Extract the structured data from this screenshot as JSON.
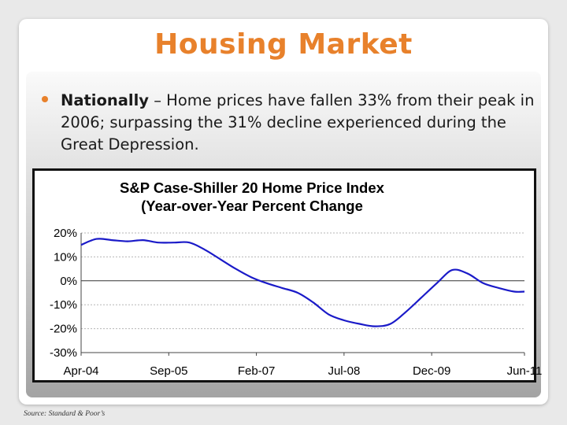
{
  "slide": {
    "title": "Housing Market",
    "bullet": {
      "lead": "Nationally",
      "text": " – Home prices have fallen 33% from their peak in 2006; surpassing the 31% decline experienced during the Great Depression."
    },
    "source": "Source:  Standard & Poor’s"
  },
  "colors": {
    "title": "#e8812b",
    "bullet": "#e8812b",
    "line": "#1a1ac8"
  },
  "chart_data": {
    "type": "line",
    "title": [
      "S&P Case-Shiller 20 Home Price Index",
      "(Year-over-Year Percent Change"
    ],
    "xlabel": "",
    "ylabel": "",
    "ylim": [
      -30,
      20
    ],
    "yticks": [
      {
        "value": 20,
        "label": "20%"
      },
      {
        "value": 10,
        "label": "10%"
      },
      {
        "value": 0,
        "label": "0%"
      },
      {
        "value": -10,
        "label": "-10%"
      },
      {
        "value": -20,
        "label": "-20%"
      },
      {
        "value": -30,
        "label": "-30%"
      }
    ],
    "xticks": [
      {
        "date": "2004-04",
        "label": "Apr-04"
      },
      {
        "date": "2005-09",
        "label": "Sep-05"
      },
      {
        "date": "2007-02",
        "label": "Feb-07"
      },
      {
        "date": "2008-07",
        "label": "Jul-08"
      },
      {
        "date": "2009-12",
        "label": "Dec-09"
      },
      {
        "date": "2011-06",
        "label": "Jun-11"
      }
    ],
    "grid": true,
    "legend": "none",
    "series": [
      {
        "x": [
          "2004-04",
          "2004-07",
          "2004-10",
          "2005-01",
          "2005-04",
          "2005-07",
          "2005-10",
          "2006-01",
          "2006-04",
          "2006-07",
          "2006-10",
          "2007-01",
          "2007-04",
          "2007-07",
          "2007-10",
          "2008-01",
          "2008-04",
          "2008-07",
          "2008-10",
          "2009-01",
          "2009-04",
          "2009-07",
          "2009-10",
          "2010-01",
          "2010-04",
          "2010-07",
          "2010-10",
          "2011-01",
          "2011-04",
          "2011-06"
        ],
        "values": [
          15,
          17.5,
          17,
          16.5,
          17,
          16,
          16,
          16,
          13,
          9,
          5,
          1.5,
          -1,
          -3,
          -5,
          -9,
          -14,
          -16.5,
          -18,
          -19,
          -18,
          -13,
          -7,
          -1,
          4.5,
          3,
          -1,
          -3,
          -4.5,
          -4.5
        ]
      }
    ]
  }
}
